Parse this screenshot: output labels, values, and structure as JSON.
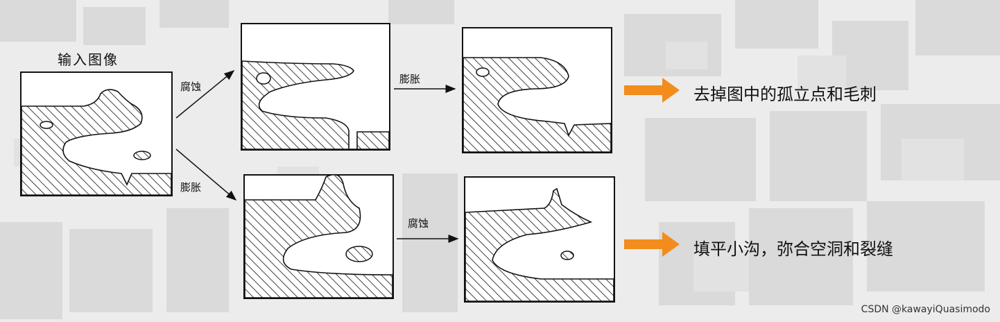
{
  "diagram": {
    "input_label": "输入图像",
    "op_erosion": "腐蚀",
    "op_dilation": "膨胀",
    "result_opening": "去掉图中的孤立点和毛刺",
    "result_closing": "填平小沟，弥合空洞和裂缝"
  },
  "watermark": "CSDN @kawayiQuasimodo",
  "colors": {
    "accent_arrow": "#f28c1c",
    "ink": "#111111"
  }
}
